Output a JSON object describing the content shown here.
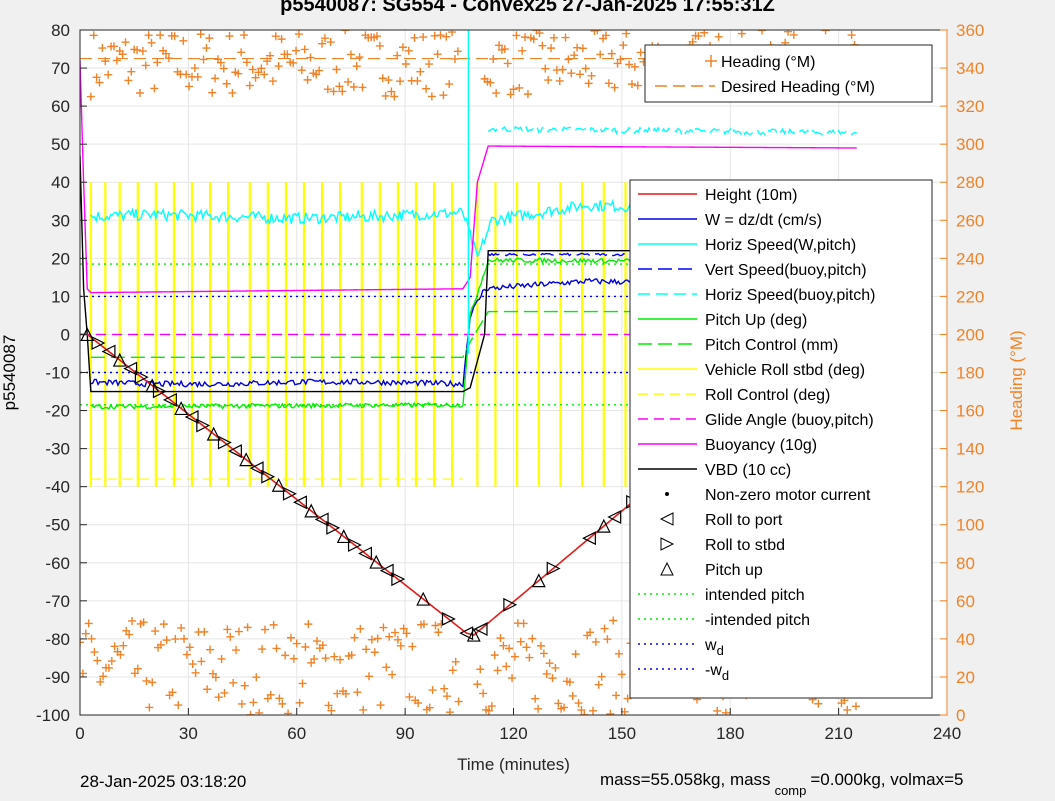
{
  "title": "p5540087: SG554 - Convex25 27-Jan-2025 17:55:31Z",
  "footer": {
    "date": "28-Jan-2025 03:18:20",
    "mass_prefix": "mass=55.058kg, mass",
    "mass_sub": "comp",
    "mass_suffix": "=0.000kg, volmax=5"
  },
  "chart_data": {
    "type": "line",
    "xlabel": "Time (minutes)",
    "ylabel": "p5540087",
    "y2label": "Heading (°M)",
    "xlim": [
      0,
      240
    ],
    "ylim": [
      -100,
      80
    ],
    "y2lim": [
      0,
      360
    ],
    "xticks": [
      0,
      30,
      60,
      90,
      120,
      150,
      180,
      210,
      240
    ],
    "yticks": [
      -100,
      -90,
      -80,
      -70,
      -60,
      -50,
      -40,
      -30,
      -20,
      -10,
      0,
      10,
      20,
      30,
      40,
      50,
      60,
      70,
      80
    ],
    "y2ticks": [
      0,
      20,
      40,
      60,
      80,
      100,
      120,
      140,
      160,
      180,
      200,
      220,
      240,
      260,
      280,
      300,
      320,
      340,
      360
    ],
    "grid": true,
    "colors": {
      "height": "#e41a1c",
      "w": "#0000dd",
      "horiz_speed": "#00ffff",
      "vert_speed": "#0000ff",
      "pitch": "#00ee00",
      "roll": "#ffff00",
      "glide": "#ff00ff",
      "buoyancy": "#ff00ff",
      "vbd": "#000000",
      "heading": "#f28228"
    },
    "legend_top": {
      "placement": "top-right",
      "entries": [
        "Heading (°M)",
        "Desired Heading (°M)"
      ]
    },
    "legend_main": {
      "placement": "right",
      "entries": [
        "Height (10m)",
        "W = dz/dt (cm/s)",
        "Horiz Speed(W,pitch)",
        "Vert Speed(buoy,pitch)",
        "Horiz Speed(buoy,pitch)",
        "Pitch Up (deg)",
        "Pitch Control (mm)",
        "Vehicle Roll stbd (deg)",
        "Roll Control (deg)",
        "Glide Angle (buoy,pitch)",
        "Buoyancy (10g)",
        "VBD (10 cc)",
        "Non-zero motor current",
        "Roll to port",
        "Roll to stbd",
        "Pitch up",
        "intended pitch",
        "-intended pitch",
        "w_d",
        "-w_d"
      ]
    },
    "series": [
      {
        "name": "Height (10m)",
        "x": [
          0,
          2,
          107,
          109,
          153,
          215
        ],
        "y": [
          0,
          0,
          -78.5,
          -79,
          -44,
          0
        ]
      },
      {
        "name": "VBD (10 cc)",
        "x": [
          0,
          1,
          2,
          3,
          106,
          108,
          112,
          113,
          215
        ],
        "y": [
          47,
          12,
          0,
          -15,
          -15,
          -14,
          0,
          22,
          22
        ]
      },
      {
        "name": "Buoyancy (10g)",
        "x": [
          0,
          1,
          2,
          3,
          106,
          108,
          110,
          113,
          215
        ],
        "y": [
          72,
          40,
          12,
          11,
          12,
          15,
          40,
          49.5,
          49
        ]
      },
      {
        "name": "W = dz/dt (cm/s)",
        "x": [
          3,
          20,
          40,
          60,
          80,
          106,
          108,
          112,
          140,
          170,
          215
        ],
        "y": [
          -12.5,
          -13,
          -13,
          -12.5,
          -12.5,
          -13,
          5,
          12,
          14,
          13.5,
          12.5
        ]
      },
      {
        "name": "Horiz Speed(W,pitch)",
        "x": [
          3,
          20,
          40,
          60,
          80,
          106,
          110,
          114,
          140,
          170,
          215
        ],
        "y": [
          31,
          31.5,
          31,
          30.5,
          31,
          32,
          20,
          30,
          34,
          33,
          31
        ]
      },
      {
        "name": "Horiz Speed(buoy,pitch)",
        "x": [
          113,
          215
        ],
        "y": [
          54,
          53
        ]
      },
      {
        "name": "Vert Speed(buoy,pitch)",
        "x": [
          113,
          215
        ],
        "y": [
          21,
          21
        ]
      },
      {
        "name": "Pitch Up (deg)",
        "x": [
          3,
          106,
          108,
          113,
          215
        ],
        "y": [
          -19,
          -18.5,
          5,
          19.5,
          19
        ]
      },
      {
        "name": "Pitch Control (mm)",
        "x": [
          3,
          106,
          108,
          113,
          215
        ],
        "y": [
          -6,
          -6,
          -2,
          6,
          6
        ]
      },
      {
        "name": "Glide Angle (buoy,pitch)",
        "x": [
          0,
          215
        ],
        "y": [
          0,
          0
        ]
      },
      {
        "name": "intended pitch",
        "x": [
          0,
          215
        ],
        "y": [
          18.5,
          18.5
        ]
      },
      {
        "name": "-intended pitch",
        "x": [
          0,
          215
        ],
        "y": [
          -18.5,
          -18.5
        ]
      },
      {
        "name": "w_d",
        "x": [
          0,
          215
        ],
        "y": [
          10,
          10
        ]
      },
      {
        "name": "-w_d",
        "x": [
          0,
          215
        ],
        "y": [
          -10,
          -10
        ]
      }
    ],
    "roll_spikes_x": [
      3,
      7,
      11,
      16,
      21,
      26,
      31,
      36,
      41,
      47,
      52,
      57,
      62,
      67,
      72,
      78,
      83,
      88,
      93,
      98,
      103,
      110,
      115,
      121,
      127,
      133,
      139,
      145,
      151,
      157,
      163,
      169,
      175,
      181,
      187,
      193,
      199,
      205,
      211
    ],
    "roll_spike_range": [
      -40,
      40
    ],
    "markers_descent_x": [
      2,
      5,
      8,
      11,
      14,
      17,
      20,
      22,
      25,
      28,
      31,
      34,
      37,
      40,
      43,
      46,
      49,
      52,
      55,
      58,
      61,
      64,
      67,
      70,
      73,
      76,
      79,
      82,
      85,
      88,
      95,
      102,
      107
    ],
    "markers_ascent_x": [
      109,
      111,
      119,
      127,
      131,
      141,
      145,
      148,
      153,
      155,
      158,
      160,
      165,
      172,
      178,
      182,
      186,
      190,
      193,
      197,
      200,
      203,
      206,
      209,
      212,
      215
    ],
    "heading_top_band_y2": [
      325,
      360
    ],
    "heading_bottom_band_y2": [
      0,
      50
    ]
  }
}
